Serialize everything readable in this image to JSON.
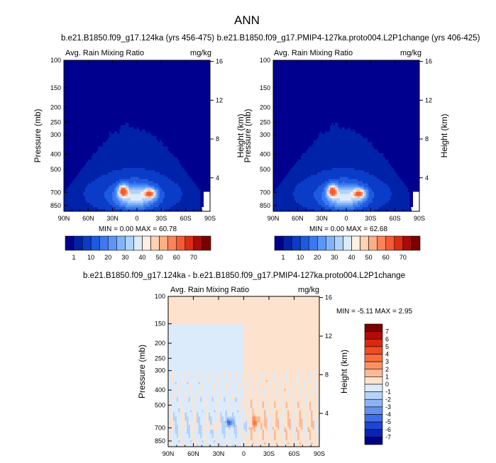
{
  "figure": {
    "title": "ANN"
  },
  "chart_data": [
    {
      "type": "heatmap",
      "title": "b.e21.B1850.f09_g17.124ka (yrs 456-475)",
      "left_label": "Avg. Rain Mixing Ratio",
      "right_label": "mg/kg",
      "ylabel": "Pressure (mb)",
      "y2label": "Height (km)",
      "x_ticks": [
        "90N",
        "60N",
        "30N",
        "0",
        "30S",
        "60S",
        "90S"
      ],
      "y_ticks": [
        "100",
        "150",
        "200",
        "250",
        "300",
        "400",
        "500",
        "700",
        "850"
      ],
      "y2_ticks": [
        "4",
        "8",
        "12",
        "16"
      ],
      "stats": "MIN =  0.00  MAX = 60.78",
      "min": 0.0,
      "max": 60.78,
      "colorbar_levels": [
        1,
        5,
        10,
        15,
        20,
        25,
        30,
        35,
        40,
        45,
        50,
        55,
        60,
        65,
        70
      ],
      "colorbar_labels": [
        "1",
        "10",
        "20",
        "30",
        "40",
        "50",
        "60",
        "70"
      ],
      "colors": [
        "#00008f",
        "#0022a8",
        "#0a3cc8",
        "#1e5ae0",
        "#3c78f0",
        "#5a96f5",
        "#82b4fa",
        "#afd2fc",
        "#dcebfe",
        "#fff0e1",
        "#ffd2b4",
        "#ffaf82",
        "#ff825a",
        "#f55a32",
        "#dc2d14",
        "#aa0a0a",
        "#7d0000"
      ]
    },
    {
      "type": "heatmap",
      "title": "b.e21.B1850.f09_g17.PMIP4-127ka.proto004.L2P1change (yrs 406-425)",
      "left_label": "Avg. Rain Mixing Ratio",
      "right_label": "mg/kg",
      "ylabel": "Pressure (mb)",
      "y2label": "Height (km)",
      "x_ticks": [
        "90N",
        "60N",
        "30N",
        "0",
        "30S",
        "60S",
        "90S"
      ],
      "y_ticks": [
        "100",
        "150",
        "200",
        "250",
        "300",
        "400",
        "500",
        "700",
        "850"
      ],
      "y2_ticks": [
        "4",
        "8",
        "12",
        "16"
      ],
      "stats": "MIN =  0.00  MAX = 62.68",
      "min": 0.0,
      "max": 62.68,
      "colorbar_levels": [
        1,
        5,
        10,
        15,
        20,
        25,
        30,
        35,
        40,
        45,
        50,
        55,
        60,
        65,
        70
      ],
      "colorbar_labels": [
        "1",
        "10",
        "20",
        "30",
        "40",
        "50",
        "60",
        "70"
      ],
      "colors": [
        "#00008f",
        "#0022a8",
        "#0a3cc8",
        "#1e5ae0",
        "#3c78f0",
        "#5a96f5",
        "#82b4fa",
        "#afd2fc",
        "#dcebfe",
        "#fff0e1",
        "#ffd2b4",
        "#ffaf82",
        "#ff825a",
        "#f55a32",
        "#dc2d14",
        "#aa0a0a",
        "#7d0000"
      ]
    },
    {
      "type": "heatmap",
      "title": "b.e21.B1850.f09_g17.124ka - b.e21.B1850.f09_g17.PMIP4-127ka.proto004.L2P1change",
      "left_label": "Avg. Rain Mixing Ratio",
      "right_label": "mg/kg",
      "ylabel": "Pressure (mb)",
      "y2label": "Height (km)",
      "x_ticks": [
        "90N",
        "60N",
        "30N",
        "0",
        "30S",
        "60S",
        "90S"
      ],
      "y_ticks": [
        "100",
        "150",
        "200",
        "250",
        "300",
        "400",
        "500",
        "700",
        "850"
      ],
      "y2_ticks": [
        "4",
        "8",
        "12",
        "16"
      ],
      "stats": "MIN = -5.11  MAX =  2.95",
      "min": -5.11,
      "max": 2.95,
      "colorbar_labels": [
        "7",
        "6",
        "5",
        "4",
        "3",
        "2",
        "1",
        "0",
        "-1",
        "-2",
        "-3",
        "-4",
        "-5",
        "-6",
        "-7"
      ],
      "colors": [
        "#7d0000",
        "#b40a0a",
        "#dc280f",
        "#f04b23",
        "#fa6e3c",
        "#fa9164",
        "#fcb996",
        "#fde3cd",
        "#dcebfc",
        "#b4d2fa",
        "#8cb4f5",
        "#6491f0",
        "#3c6ee6",
        "#1e46d2",
        "#0a23b4",
        "#000082"
      ]
    }
  ]
}
